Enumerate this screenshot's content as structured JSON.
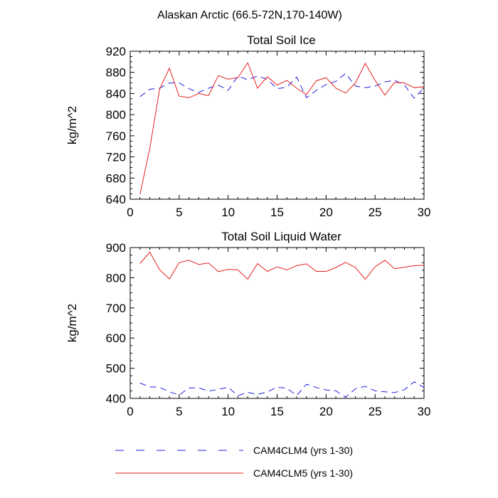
{
  "figure_title": "Alaskan Arctic (66.5-72N,170-140W)",
  "legend": [
    {
      "label": "CAM4CLM4 (yrs 1-30)",
      "color": "#1f1fe6",
      "dash": true
    },
    {
      "label": "CAM4CLM5 (yrs 1-30)",
      "color": "#e61f1f",
      "dash": false
    }
  ],
  "chart_data": [
    {
      "type": "line",
      "title": "Total Soil Ice",
      "xlabel": "",
      "ylabel": "kg/m^2",
      "xlim": [
        0,
        30
      ],
      "ylim": [
        640,
        920
      ],
      "xticks": [
        0,
        5,
        10,
        15,
        20,
        25,
        30
      ],
      "yticks": [
        640,
        680,
        720,
        760,
        800,
        840,
        880,
        920
      ],
      "x": [
        1,
        2,
        3,
        4,
        5,
        6,
        7,
        8,
        9,
        10,
        11,
        12,
        13,
        14,
        15,
        16,
        17,
        18,
        19,
        20,
        21,
        22,
        23,
        24,
        25,
        26,
        27,
        28,
        29,
        30
      ],
      "series": [
        {
          "name": "CAM4CLM4 (yrs 1-30)",
          "color": "#1f1fe6",
          "dash": true,
          "values": [
            834,
            848,
            850,
            860,
            860,
            849,
            842,
            850,
            856,
            846,
            873,
            866,
            873,
            867,
            849,
            852,
            871,
            832,
            846,
            857,
            863,
            878,
            854,
            851,
            854,
            862,
            865,
            856,
            831,
            851
          ]
        },
        {
          "name": "CAM4CLM5 (yrs 1-30)",
          "color": "#e61f1f",
          "dash": false,
          "values": [
            649,
            736,
            848,
            888,
            835,
            832,
            840,
            836,
            874,
            867,
            870,
            898,
            850,
            872,
            856,
            865,
            850,
            838,
            864,
            870,
            850,
            841,
            860,
            897,
            865,
            837,
            861,
            860,
            851,
            853
          ]
        }
      ]
    },
    {
      "type": "line",
      "title": "Total Soil Liquid Water",
      "xlabel": "",
      "ylabel": "kg/m^2",
      "xlim": [
        0,
        30
      ],
      "ylim": [
        400,
        900
      ],
      "xticks": [
        0,
        5,
        10,
        15,
        20,
        25,
        30
      ],
      "yticks": [
        400,
        500,
        600,
        700,
        800,
        900
      ],
      "x": [
        1,
        2,
        3,
        4,
        5,
        6,
        7,
        8,
        9,
        10,
        11,
        12,
        13,
        14,
        15,
        16,
        17,
        18,
        19,
        20,
        21,
        22,
        23,
        24,
        25,
        26,
        27,
        28,
        29,
        30
      ],
      "series": [
        {
          "name": "CAM4CLM4 (yrs 1-30)",
          "color": "#1f1fe6",
          "dash": true,
          "values": [
            451,
            438,
            437,
            422,
            411,
            435,
            435,
            424,
            430,
            437,
            409,
            420,
            413,
            422,
            437,
            434,
            410,
            447,
            436,
            428,
            425,
            404,
            432,
            440,
            425,
            422,
            419,
            429,
            455,
            436
          ]
        },
        {
          "name": "CAM4CLM5 (yrs 1-30)",
          "color": "#e61f1f",
          "dash": false,
          "values": [
            847,
            885,
            827,
            796,
            850,
            858,
            844,
            849,
            820,
            828,
            826,
            795,
            847,
            821,
            836,
            826,
            840,
            846,
            821,
            821,
            834,
            851,
            834,
            795,
            836,
            858,
            830,
            835,
            840,
            841
          ]
        }
      ]
    }
  ]
}
